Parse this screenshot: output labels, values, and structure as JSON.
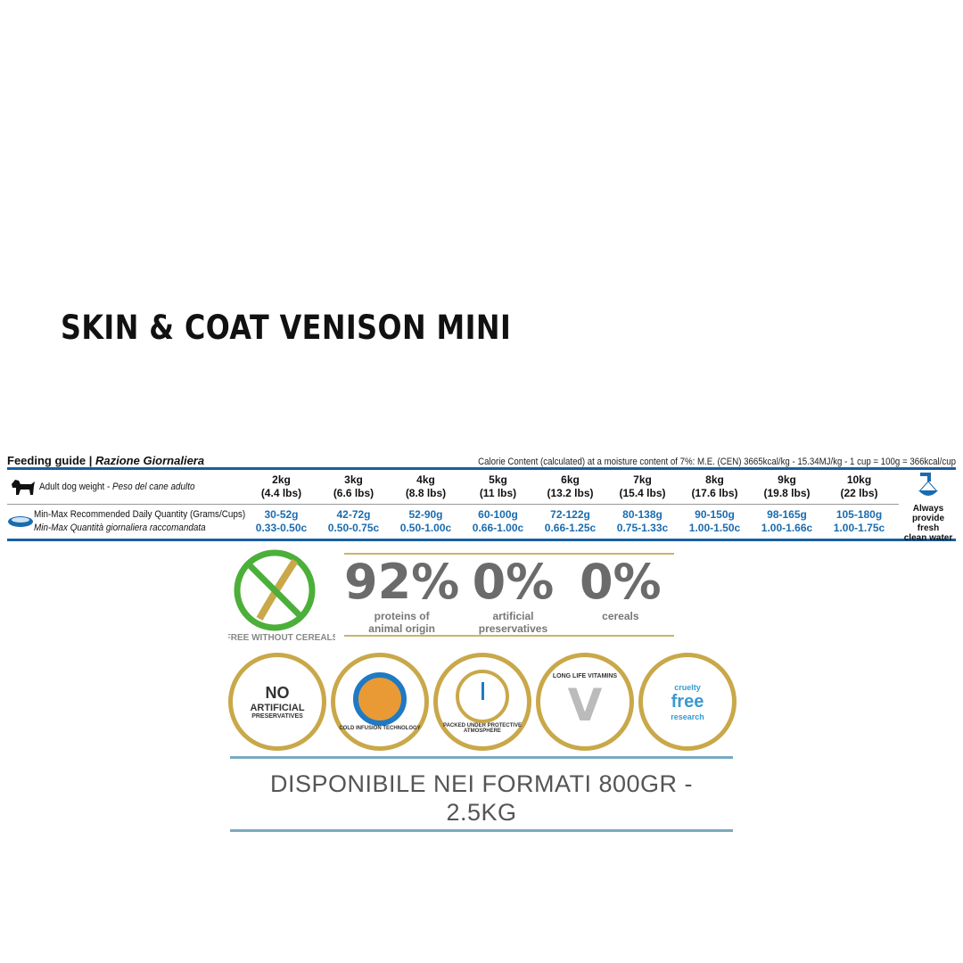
{
  "title": "SKIN & COAT VENISON MINI",
  "feeding_guide": {
    "title": "Feeding guide |",
    "title_it": "Razione Giornaliera",
    "calorie": "Calorie Content (calculated) at a moisture content of 7%: M.E. (CEN) 3665kcal/kg - 15.34MJ/kg - 1 cup = 100g = 366kcal/cup",
    "weight_label": "Adult dog weight - ",
    "weight_label_it": "Peso del cane adulto",
    "qty_label": "Min-Max Recommended Daily Quantity (Grams/Cups)",
    "qty_label_it": "Min-Max Quantità giornaliera raccomandata",
    "weights": [
      [
        "2kg",
        "(4.4 lbs)"
      ],
      [
        "3kg",
        "(6.6 lbs)"
      ],
      [
        "4kg",
        "(8.8 lbs)"
      ],
      [
        "5kg",
        "(11 lbs)"
      ],
      [
        "6kg",
        "(13.2 lbs)"
      ],
      [
        "7kg",
        "(15.4 lbs)"
      ],
      [
        "8kg",
        "(17.6 lbs)"
      ],
      [
        "9kg",
        "(19.8 lbs)"
      ],
      [
        "10kg",
        "(22 lbs)"
      ]
    ],
    "quantities": [
      [
        "30-52g",
        "0.33-0.50c"
      ],
      [
        "42-72g",
        "0.50-0.75c"
      ],
      [
        "52-90g",
        "0.50-1.00c"
      ],
      [
        "60-100g",
        "0.66-1.00c"
      ],
      [
        "72-122g",
        "0.66-1.25c"
      ],
      [
        "80-138g",
        "0.75-1.33c"
      ],
      [
        "90-150g",
        "1.00-1.50c"
      ],
      [
        "98-165g",
        "1.00-1.66c"
      ],
      [
        "105-180g",
        "1.00-1.75c"
      ]
    ],
    "water": [
      "Always",
      "provide fresh",
      "clean water"
    ],
    "accent": "#1a6cb0"
  },
  "stats": [
    {
      "value": "92%",
      "label": [
        "proteins of",
        "animal origin"
      ]
    },
    {
      "value": "0%",
      "label": [
        "artificial",
        "preservatives"
      ]
    },
    {
      "value": "0%",
      "label": [
        "cereals",
        ""
      ]
    }
  ],
  "badges": {
    "cereal_free": "FREE WITHOUT CEREALS",
    "no_artificial": [
      "NO",
      "ARTIFICIAL",
      "PRESERVATIVES"
    ],
    "cold_infusion": "COLD INFUSION TECHNOLOGY",
    "packed": "PACKED UNDER PROTECTIVE ATMOSPHERE",
    "vitamins": "LONG LIFE VITAMINS",
    "cruelty": [
      "cruelty",
      "free",
      "research"
    ]
  },
  "availability": [
    "DISPONIBILE NEI FORMATI 800GR -",
    "2.5KG"
  ]
}
